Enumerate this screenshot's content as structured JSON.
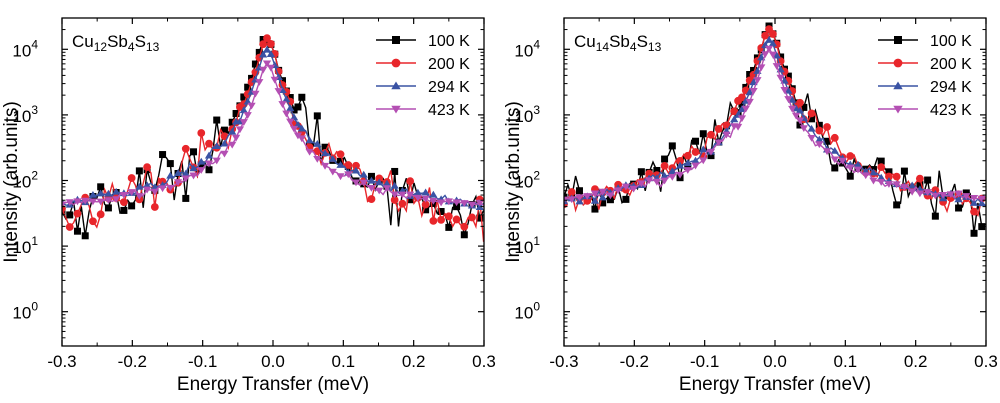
{
  "chart_data": [
    {
      "type": "scatter",
      "title_base": [
        "Cu",
        "12",
        "Sb",
        "4",
        "S",
        "13"
      ],
      "xlabel": "Energy Transfer (meV)",
      "ylabel": "Intensity (arb.units)",
      "xlim": [
        -0.3,
        0.3
      ],
      "yscale": "log",
      "ylim": [
        0.3,
        30000
      ],
      "xticks": [
        -0.3,
        -0.2,
        -0.1,
        0.0,
        0.1,
        0.2,
        0.3
      ],
      "xtick_labels": [
        "-0.3",
        "-0.2",
        "-0.1",
        "0.0",
        "0.1",
        "0.2",
        "0.3"
      ],
      "yticks": [
        1,
        10,
        100,
        1000,
        10000
      ],
      "ytick_labels": [
        {
          "base": "10",
          "exp": "0"
        },
        {
          "base": "10",
          "exp": "1"
        },
        {
          "base": "10",
          "exp": "2"
        },
        {
          "base": "10",
          "exp": "3"
        },
        {
          "base": "10",
          "exp": "4"
        }
      ],
      "legend_position": "top-right",
      "series": [
        {
          "name": "100 K",
          "color": "#000000",
          "marker": "square",
          "peak": 15000,
          "plateau": 5,
          "wing": 0.4,
          "noise": 0.45
        },
        {
          "name": "200 K",
          "color": "#e8262b",
          "marker": "circle",
          "peak": 13000,
          "plateau": 6,
          "wing": 0.4,
          "noise": 0.35
        },
        {
          "name": "294 K",
          "color": "#3a53a4",
          "marker": "triangle-up",
          "peak": 10000,
          "plateau": 27,
          "wing": 2.5,
          "noise": 0.08
        },
        {
          "name": "423 K",
          "color": "#b44fb3",
          "marker": "triangle-down",
          "peak": 6000,
          "plateau": 33,
          "wing": 3.5,
          "noise": 0.07
        }
      ]
    },
    {
      "type": "scatter",
      "title_base": [
        "Cu",
        "14",
        "Sb",
        "4",
        "S",
        "13"
      ],
      "xlabel": "Energy Transfer (meV)",
      "ylabel": "Intensity (arb.units)",
      "xlim": [
        -0.3,
        0.3
      ],
      "yscale": "log",
      "ylim": [
        0.3,
        30000
      ],
      "xticks": [
        -0.3,
        -0.2,
        -0.1,
        0.0,
        0.1,
        0.2,
        0.3
      ],
      "xtick_labels": [
        "-0.3",
        "-0.2",
        "-0.1",
        "0.0",
        "0.1",
        "0.2",
        "0.3"
      ],
      "yticks": [
        1,
        10,
        100,
        1000,
        10000
      ],
      "ytick_labels": [
        {
          "base": "10",
          "exp": "0"
        },
        {
          "base": "10",
          "exp": "1"
        },
        {
          "base": "10",
          "exp": "2"
        },
        {
          "base": "10",
          "exp": "3"
        },
        {
          "base": "10",
          "exp": "4"
        }
      ],
      "legend_position": "top-right",
      "series": [
        {
          "name": "100 K",
          "color": "#000000",
          "marker": "square",
          "peak": 22000,
          "plateau": 4,
          "wing": 4,
          "noise": 0.4
        },
        {
          "name": "200 K",
          "color": "#e8262b",
          "marker": "circle",
          "peak": 20000,
          "plateau": 7,
          "wing": 8,
          "noise": 0.2
        },
        {
          "name": "294 K",
          "color": "#3a53a4",
          "marker": "triangle-up",
          "peak": 14000,
          "plateau": 25,
          "wing": 9,
          "noise": 0.08
        },
        {
          "name": "423 K",
          "color": "#b44fb3",
          "marker": "triangle-down",
          "peak": 10000,
          "plateau": 35,
          "wing": 10,
          "noise": 0.07
        }
      ]
    }
  ]
}
